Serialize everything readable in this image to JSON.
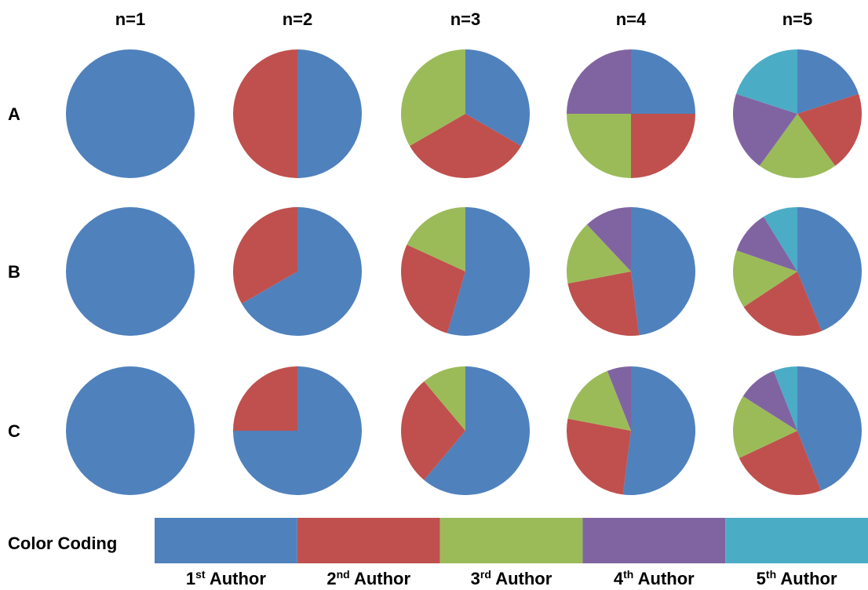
{
  "chart_data": {
    "type": "pie",
    "columns": [
      "n=1",
      "n=2",
      "n=3",
      "n=4",
      "n=5"
    ],
    "rows": [
      "A",
      "B",
      "C"
    ],
    "pies": [
      [
        [
          1.0
        ],
        [
          0.5,
          0.5
        ],
        [
          0.3333,
          0.3333,
          0.3334
        ],
        [
          0.25,
          0.25,
          0.25,
          0.25
        ],
        [
          0.2,
          0.2,
          0.2,
          0.2,
          0.2
        ]
      ],
      [
        [
          1.0
        ],
        [
          0.6667,
          0.3333
        ],
        [
          0.5455,
          0.2727,
          0.1818
        ],
        [
          0.48,
          0.24,
          0.16,
          0.12
        ],
        [
          0.438,
          0.219,
          0.146,
          0.109,
          0.088
        ]
      ],
      [
        [
          1.0
        ],
        [
          0.75,
          0.25
        ],
        [
          0.611,
          0.278,
          0.111
        ],
        [
          0.52,
          0.26,
          0.16,
          0.06
        ],
        [
          0.44,
          0.24,
          0.16,
          0.1,
          0.06
        ]
      ]
    ],
    "legend": {
      "title": "Color Coding",
      "entries": [
        {
          "ordinal": "1",
          "suffix": "st",
          "word": "Author",
          "color": "#4F81BD"
        },
        {
          "ordinal": "2",
          "suffix": "nd",
          "word": "Author",
          "color": "#C0504D"
        },
        {
          "ordinal": "3",
          "suffix": "rd",
          "word": "Author",
          "color": "#9BBB59"
        },
        {
          "ordinal": "4",
          "suffix": "th",
          "word": "Author",
          "color": "#8064A2"
        },
        {
          "ordinal": "5",
          "suffix": "th",
          "word": "Author",
          "color": "#4BACC6"
        }
      ]
    }
  }
}
